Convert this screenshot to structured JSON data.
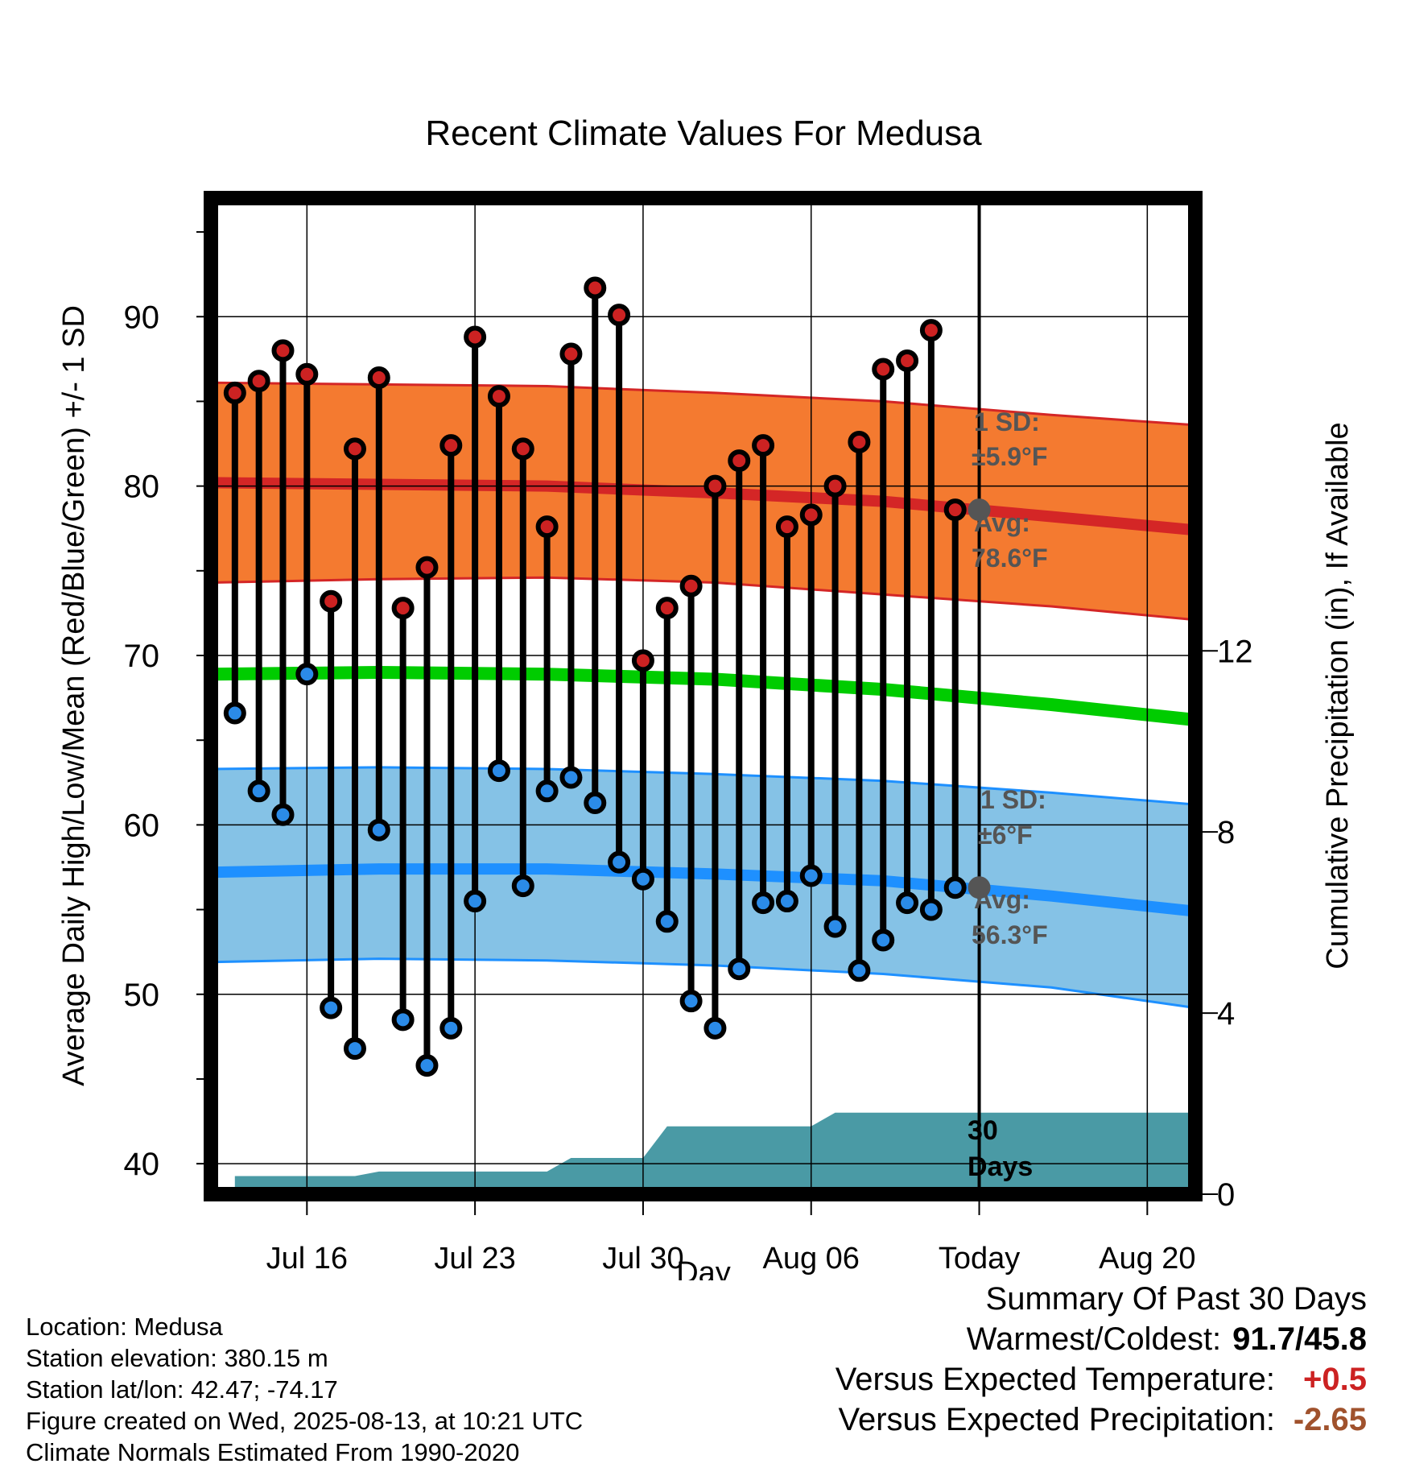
{
  "title": "Recent Climate Values For Medusa",
  "y_left_label": "Average Daily High/Low/Mean (Red/Blue/Green) +/- 1 SD",
  "y_right_label": "Cumulative Precipitation (in), If Available",
  "x_label": "Day",
  "x_ticks": [
    "Jul 16",
    "Jul 23",
    "Jul 30",
    "Aug 06",
    "Today",
    "Aug 20"
  ],
  "y_left_ticks": [
    "40",
    "50",
    "60",
    "70",
    "80",
    "90"
  ],
  "y_right_ticks": [
    "0",
    "4",
    "8",
    "12"
  ],
  "annotations": {
    "high_sd_line1": "1 SD:",
    "high_sd_line2": "±5.9°F",
    "high_avg_line1": "Avg:",
    "high_avg_line2": "78.6°F",
    "low_sd_line1": "1 SD:",
    "low_sd_line2": "±6°F",
    "low_avg_line1": "Avg:",
    "low_avg_line2": "56.3°F",
    "precip_line1": "30",
    "precip_line2": "Days"
  },
  "info": {
    "location": "Location: Medusa",
    "elevation": "Station elevation: 380.15 m",
    "latlon": "Station lat/lon: 42.47; -74.17",
    "created": "Figure created on Wed, 2025-08-13, at 10:21 UTC",
    "normals": "Climate Normals Estimated From 1990-2020"
  },
  "summary": {
    "heading": "Summary Of Past 30 Days",
    "warm_cold_label": "Warmest/Coldest:",
    "warm_cold_value": "91.7/45.8",
    "temp_label": "Versus Expected Temperature:",
    "temp_value": "+0.5",
    "precip_label": "Versus Expected Precipitation:",
    "precip_value": "-2.65"
  },
  "colors": {
    "high_band": "#f47a30",
    "high_edge": "#d42626",
    "high_avg": "#d42626",
    "low_band": "#85c2e6",
    "low_edge": "#1e90ff",
    "low_avg": "#1e90ff",
    "mean": "#00cc00",
    "precip": "#4a9aa5",
    "high_dot": "#cc2222",
    "low_dot": "#2b8be8",
    "today_marker": "#555555",
    "annotation_text": "#555555",
    "temp_value": "#cc2222",
    "precip_value": "#a0522d"
  },
  "chart_data": {
    "type": "line",
    "x_type": "date",
    "x_range": [
      "2025-07-12",
      "2025-08-22"
    ],
    "today": "2025-08-13",
    "ylim_left": [
      38.2,
      97
    ],
    "ylim_right": [
      0,
      22
    ],
    "grid": true,
    "x_ticks": [
      "2025-07-16",
      "2025-07-23",
      "2025-07-30",
      "2025-08-06",
      "2025-08-13",
      "2025-08-20"
    ],
    "x_tick_labels": [
      "Jul 16",
      "Jul 23",
      "Jul 30",
      "Aug 06",
      "Today",
      "Aug 20"
    ],
    "daily_observations": {
      "dates": [
        "2025-07-13",
        "2025-07-14",
        "2025-07-15",
        "2025-07-16",
        "2025-07-17",
        "2025-07-18",
        "2025-07-19",
        "2025-07-20",
        "2025-07-21",
        "2025-07-22",
        "2025-07-23",
        "2025-07-24",
        "2025-07-25",
        "2025-07-26",
        "2025-07-27",
        "2025-07-28",
        "2025-07-29",
        "2025-07-30",
        "2025-07-31",
        "2025-08-01",
        "2025-08-02",
        "2025-08-03",
        "2025-08-04",
        "2025-08-05",
        "2025-08-06",
        "2025-08-07",
        "2025-08-08",
        "2025-08-09",
        "2025-08-10",
        "2025-08-11",
        "2025-08-12"
      ],
      "high": [
        85.5,
        86.2,
        88.0,
        86.6,
        73.2,
        82.2,
        86.4,
        72.8,
        75.2,
        82.4,
        88.8,
        85.3,
        82.2,
        77.6,
        87.8,
        91.7,
        90.1,
        69.7,
        72.8,
        74.1,
        80.0,
        81.5,
        82.4,
        77.6,
        78.3,
        80.0,
        82.6,
        86.9,
        87.4,
        89.2,
        78.6
      ],
      "low": [
        66.6,
        62.0,
        60.6,
        68.9,
        49.2,
        46.8,
        59.7,
        48.5,
        45.8,
        48.0,
        55.5,
        63.2,
        56.4,
        62.0,
        62.8,
        61.3,
        57.8,
        56.8,
        54.3,
        49.6,
        48.0,
        51.5,
        55.4,
        55.5,
        57.0,
        54.0,
        51.4,
        53.2,
        55.4,
        55.0,
        56.3
      ]
    },
    "normals": {
      "x": [
        "2025-07-12",
        "2025-07-19",
        "2025-07-26",
        "2025-08-02",
        "2025-08-09",
        "2025-08-16",
        "2025-08-22"
      ],
      "high_avg": [
        80.2,
        80.1,
        80.0,
        79.6,
        79.1,
        78.2,
        77.4
      ],
      "high_upper": [
        86.1,
        86.0,
        85.9,
        85.5,
        85.0,
        84.2,
        83.6
      ],
      "high_lower": [
        74.3,
        74.5,
        74.6,
        74.3,
        73.6,
        72.9,
        72.1
      ],
      "mean": [
        68.9,
        69.0,
        68.9,
        68.6,
        68.0,
        67.1,
        66.2
      ],
      "low_avg": [
        57.2,
        57.4,
        57.4,
        57.1,
        56.7,
        55.8,
        54.9
      ],
      "low_upper": [
        63.3,
        63.4,
        63.3,
        63.0,
        62.6,
        61.9,
        61.2
      ],
      "low_lower": [
        51.9,
        52.1,
        52.0,
        51.7,
        51.2,
        50.4,
        49.2
      ]
    },
    "precip_cumulative": {
      "x": [
        "2025-07-13",
        "2025-07-14",
        "2025-07-15",
        "2025-07-16",
        "2025-07-17",
        "2025-07-18",
        "2025-07-19",
        "2025-07-20",
        "2025-07-21",
        "2025-07-22",
        "2025-07-23",
        "2025-07-24",
        "2025-07-25",
        "2025-07-26",
        "2025-07-27",
        "2025-07-28",
        "2025-07-29",
        "2025-07-30",
        "2025-07-31",
        "2025-08-01",
        "2025-08-02",
        "2025-08-03",
        "2025-08-04",
        "2025-08-05",
        "2025-08-06",
        "2025-08-07",
        "2025-08-08",
        "2025-08-09",
        "2025-08-10",
        "2025-08-11",
        "2025-08-12",
        "2025-08-22"
      ],
      "y": [
        0.4,
        0.4,
        0.4,
        0.4,
        0.4,
        0.4,
        0.5,
        0.5,
        0.5,
        0.5,
        0.5,
        0.5,
        0.5,
        0.5,
        0.8,
        0.8,
        0.8,
        0.8,
        1.5,
        1.5,
        1.5,
        1.5,
        1.5,
        1.5,
        1.5,
        1.8,
        1.8,
        1.8,
        1.8,
        1.8,
        1.8,
        1.8
      ]
    },
    "today_markers": {
      "high_avg": 78.6,
      "low_avg": 56.3
    }
  }
}
